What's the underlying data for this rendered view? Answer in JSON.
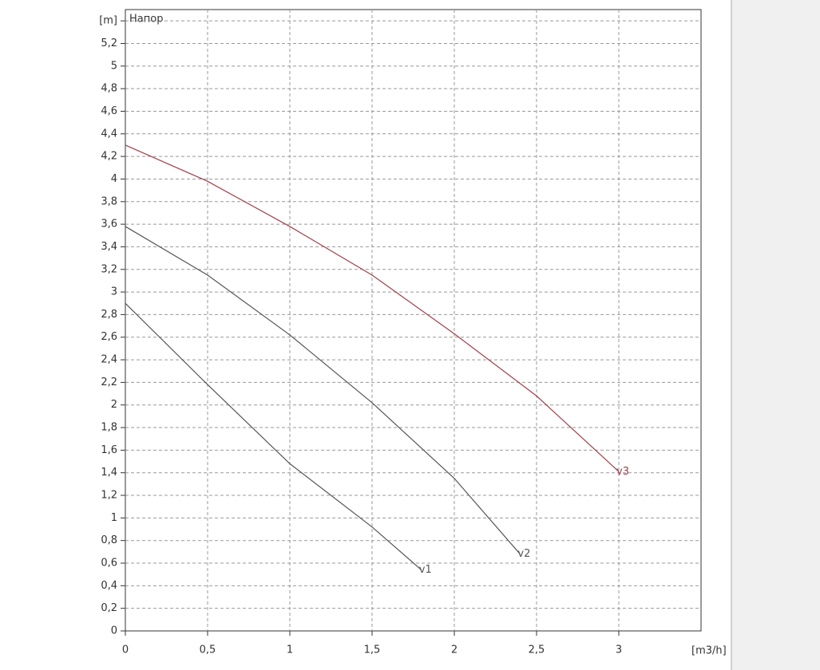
{
  "chart_data": {
    "type": "line",
    "title": "Напор",
    "x_label": "[m3/h]",
    "x": [
      0,
      0.5,
      1,
      1.5,
      2,
      2.5,
      3
    ],
    "series": [
      {
        "name": "v1",
        "color": "#555555",
        "x": [
          0,
          0.5,
          1,
          1.5,
          1.8
        ],
        "values": [
          2.9,
          2.18,
          1.48,
          0.92,
          0.54
        ]
      },
      {
        "name": "v2",
        "color": "#555555",
        "x": [
          0,
          0.5,
          1,
          1.5,
          2,
          2.4
        ],
        "values": [
          3.58,
          3.15,
          2.62,
          2.02,
          1.35,
          0.68
        ]
      },
      {
        "name": "v3",
        "color": "#a0404a",
        "x": [
          0,
          0.5,
          1,
          1.5,
          2,
          2.5,
          3
        ],
        "values": [
          4.3,
          3.98,
          3.58,
          3.15,
          2.63,
          2.08,
          1.41
        ]
      }
    ],
    "xlim": [
      0,
      3.5
    ],
    "xticks": [
      0,
      {
        "value": 0.5,
        "label": "0,5"
      },
      1,
      {
        "value": 1.5,
        "label": "1,5"
      },
      2,
      {
        "value": 2.5,
        "label": "2,5"
      },
      3
    ],
    "ylim": [
      0,
      5.5
    ],
    "yticks": [
      0,
      {
        "value": 0.2,
        "label": "0,2"
      },
      {
        "value": 0.4,
        "label": "0,4"
      },
      {
        "value": 0.6,
        "label": "0,6"
      },
      {
        "value": 0.8,
        "label": "0,8"
      },
      1,
      {
        "value": 1.2,
        "label": "1,2"
      },
      {
        "value": 1.4,
        "label": "1,4"
      },
      {
        "value": 1.6,
        "label": "1,6"
      },
      {
        "value": 1.8,
        "label": "1,8"
      },
      2,
      {
        "value": 2.2,
        "label": "2,2"
      },
      {
        "value": 2.4,
        "label": "2,4"
      },
      {
        "value": 2.6,
        "label": "2,6"
      },
      {
        "value": 2.8,
        "label": "2,8"
      },
      3,
      {
        "value": 3.2,
        "label": "3,2"
      },
      {
        "value": 3.4,
        "label": "3,4"
      },
      {
        "value": 3.6,
        "label": "3,6"
      },
      {
        "value": 3.8,
        "label": "3,8"
      },
      4,
      {
        "value": 4.2,
        "label": "4,2"
      },
      {
        "value": 4.4,
        "label": "4,4"
      },
      {
        "value": 4.6,
        "label": "4,6"
      },
      {
        "value": 4.8,
        "label": "4,8"
      },
      5,
      {
        "value": 5.2,
        "label": "5,2"
      },
      {
        "value": 5.4,
        "label": "[m]"
      }
    ],
    "grid": true
  }
}
